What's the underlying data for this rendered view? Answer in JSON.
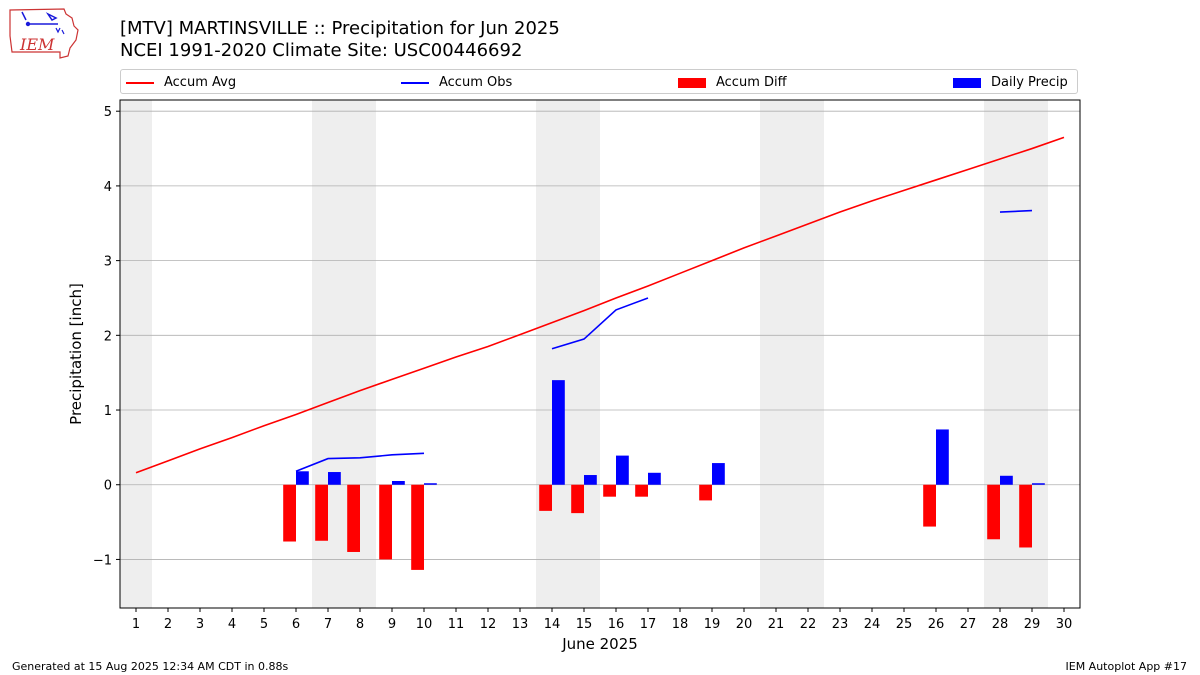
{
  "logo": {
    "text": "IEM"
  },
  "title": {
    "line1": "[MTV] MARTINSVILLE :: Precipitation for Jun 2025",
    "line2": "NCEI 1991-2020 Climate Site: USC00446692"
  },
  "legend": {
    "accum_avg": "Accum Avg",
    "accum_obs": "Accum Obs",
    "accum_diff": "Accum Diff",
    "daily_precip": "Daily Precip"
  },
  "footer": {
    "left": "Generated at 15 Aug 2025 12:34 AM CDT in 0.88s",
    "right": "IEM Autoplot App #17"
  },
  "colors": {
    "accum_avg": "#ff0000",
    "accum_obs": "#0000ff",
    "accum_diff": "#ff0000",
    "daily_precip": "#0000ff",
    "weekend_shade": "#eeeeee",
    "grid": "#b0b0b0"
  },
  "chart_data": {
    "type": "bar",
    "xlabel": "June 2025",
    "ylabel": "Precipitation [inch]",
    "xlim": [
      0.5,
      30.5
    ],
    "ylim": [
      -1.65,
      5.15
    ],
    "x_ticks": [
      1,
      2,
      3,
      4,
      5,
      6,
      7,
      8,
      9,
      10,
      11,
      12,
      13,
      14,
      15,
      16,
      17,
      18,
      19,
      20,
      21,
      22,
      23,
      24,
      25,
      26,
      27,
      28,
      29,
      30
    ],
    "y_ticks": [
      -1,
      0,
      1,
      2,
      3,
      4,
      5
    ],
    "y_tick_labels": [
      "−1",
      "0",
      "1",
      "2",
      "3",
      "4",
      "5"
    ],
    "grid": "horizontal",
    "legend_position": "top",
    "shaded_days": [
      [
        0.5,
        1.5
      ],
      [
        6.5,
        8.5
      ],
      [
        13.5,
        15.5
      ],
      [
        20.5,
        22.5
      ],
      [
        27.5,
        29.5
      ]
    ],
    "series": [
      {
        "name": "Accum Avg",
        "kind": "line",
        "x": [
          1,
          2,
          3,
          4,
          5,
          6,
          7,
          8,
          9,
          10,
          11,
          12,
          13,
          14,
          15,
          16,
          17,
          18,
          19,
          20,
          21,
          22,
          23,
          24,
          25,
          26,
          27,
          28,
          29,
          30
        ],
        "values": [
          0.16,
          0.32,
          0.48,
          0.63,
          0.79,
          0.94,
          1.1,
          1.26,
          1.41,
          1.56,
          1.71,
          1.85,
          2.01,
          2.17,
          2.33,
          2.5,
          2.66,
          2.83,
          3.0,
          3.17,
          3.33,
          3.49,
          3.65,
          3.8,
          3.94,
          4.08,
          4.22,
          4.36,
          4.5,
          4.65
        ]
      },
      {
        "name": "Accum Obs",
        "kind": "line",
        "segments": [
          {
            "x": [
              6,
              7,
              8,
              9,
              10
            ],
            "values": [
              0.18,
              0.35,
              0.36,
              0.4,
              0.42
            ]
          },
          {
            "x": [
              14,
              15,
              16,
              17
            ],
            "values": [
              1.82,
              1.95,
              2.34,
              2.5
            ]
          },
          {
            "x": [
              28,
              29
            ],
            "values": [
              3.65,
              3.67
            ]
          }
        ]
      },
      {
        "name": "Accum Diff",
        "kind": "bar",
        "x": [
          6,
          7,
          8,
          9,
          10,
          14,
          15,
          16,
          17,
          19,
          26,
          28,
          29
        ],
        "values": [
          -0.76,
          -0.75,
          -0.9,
          -1.0,
          -1.14,
          -0.35,
          -0.38,
          -0.16,
          -0.16,
          -0.21,
          -0.56,
          -0.73,
          -0.84
        ]
      },
      {
        "name": "Daily Precip",
        "kind": "bar",
        "x": [
          6,
          7,
          9,
          10,
          14,
          15,
          16,
          17,
          19,
          26,
          28,
          29
        ],
        "values": [
          0.18,
          0.17,
          0.05,
          0.02,
          1.4,
          0.13,
          0.39,
          0.16,
          0.29,
          0.74,
          0.12,
          0.02
        ]
      }
    ]
  }
}
